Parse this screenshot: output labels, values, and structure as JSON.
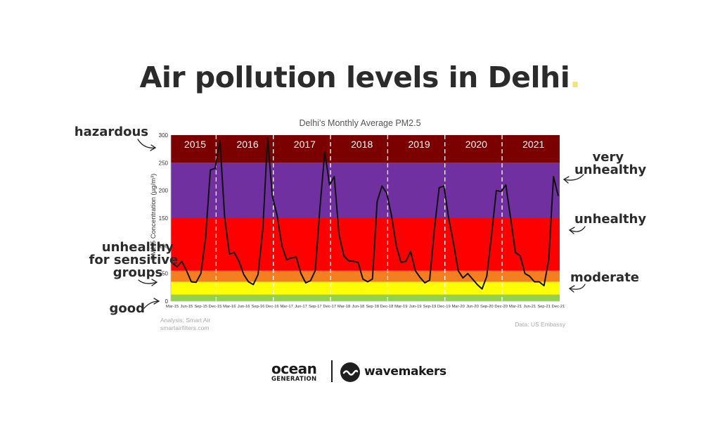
{
  "page": {
    "title": "Air pollution levels in Delhi",
    "title_dot": ".",
    "accent_dot_color": "#f2e27a"
  },
  "annotations": {
    "left": [
      "hazardous",
      "unhealthy\nfor sensitive\ngroups",
      "good"
    ],
    "right": [
      "very\nunhealthy",
      "unhealthy",
      "moderate"
    ]
  },
  "credits": {
    "analysis_line1": "Analysis: Smart Air",
    "analysis_line2": "smartairfilters.com",
    "source": "Data: US Embassy"
  },
  "footer": {
    "brand1_line1": "ocean",
    "brand1_line2": "GENERATION",
    "brand2": "wavemakers"
  },
  "chart_data": {
    "type": "line",
    "title": "Delhi's Monthly Average PM2.5",
    "ylabel": "PM2.5 Concentration (µg/m³)",
    "xlabel": "",
    "ylim": [
      0,
      300
    ],
    "yticks": [
      0,
      50,
      100,
      150,
      200,
      250,
      300
    ],
    "grid": false,
    "line_color": "#111111",
    "bands": [
      {
        "from": 0,
        "to": 12,
        "color": "#92d050",
        "label": "good"
      },
      {
        "from": 12,
        "to": 35,
        "color": "#ffff00",
        "label": "moderate"
      },
      {
        "from": 35,
        "to": 55,
        "color": "#f47f20",
        "label": "unhealthy for sensitive groups"
      },
      {
        "from": 55,
        "to": 150,
        "color": "#ff0000",
        "label": "unhealthy"
      },
      {
        "from": 150,
        "to": 250,
        "color": "#7030a0",
        "label": "very unhealthy"
      },
      {
        "from": 250,
        "to": 300,
        "color": "#7b0000",
        "label": "hazardous"
      }
    ],
    "years": [
      "2015",
      "2016",
      "2017",
      "2018",
      "2019",
      "2020",
      "2021"
    ],
    "x_tick_labels": [
      "Mar-15",
      "Jun-15",
      "Sep-15",
      "Dec-15",
      "Mar-16",
      "Jun-16",
      "Sep-16",
      "Dec-16",
      "Mar-17",
      "Jun-17",
      "Sep-17",
      "Dec-17",
      "Mar-18",
      "Jun-18",
      "Sep-18",
      "Dec-18",
      "Mar-19",
      "Jun-19",
      "Sep-19",
      "Dec-19",
      "Mar-20",
      "Jun-20",
      "Sep-20",
      "Dec-20",
      "Mar-21",
      "Jun-21",
      "Sep-21",
      "Dec-21"
    ],
    "x": [
      "Mar-15",
      "Apr-15",
      "May-15",
      "Jun-15",
      "Jul-15",
      "Aug-15",
      "Sep-15",
      "Oct-15",
      "Nov-15",
      "Dec-15",
      "Jan-16",
      "Feb-16",
      "Mar-16",
      "Apr-16",
      "May-16",
      "Jun-16",
      "Jul-16",
      "Aug-16",
      "Sep-16",
      "Oct-16",
      "Nov-16",
      "Dec-16",
      "Jan-17",
      "Feb-17",
      "Mar-17",
      "Apr-17",
      "May-17",
      "Jun-17",
      "Jul-17",
      "Aug-17",
      "Sep-17",
      "Oct-17",
      "Nov-17",
      "Dec-17",
      "Jan-18",
      "Feb-18",
      "Mar-18",
      "Apr-18",
      "May-18",
      "Jun-18",
      "Jul-18",
      "Aug-18",
      "Sep-18",
      "Oct-18",
      "Nov-18",
      "Dec-18",
      "Jan-19",
      "Feb-19",
      "Mar-19",
      "Apr-19",
      "May-19",
      "Jun-19",
      "Jul-19",
      "Aug-19",
      "Sep-19",
      "Oct-19",
      "Nov-19",
      "Dec-19",
      "Jan-20",
      "Feb-20",
      "Mar-20",
      "Apr-20",
      "May-20",
      "Jun-20",
      "Jul-20",
      "Aug-20",
      "Sep-20",
      "Oct-20",
      "Nov-20",
      "Dec-20",
      "Jan-21",
      "Feb-21",
      "Mar-21",
      "Apr-21",
      "May-21",
      "Jun-21",
      "Jul-21",
      "Aug-21",
      "Sep-21",
      "Oct-21",
      "Nov-21",
      "Dec-21"
    ],
    "values": [
      69,
      62,
      72,
      55,
      35,
      34,
      50,
      115,
      237,
      240,
      290,
      150,
      85,
      88,
      72,
      48,
      35,
      30,
      48,
      130,
      295,
      190,
      155,
      100,
      75,
      78,
      80,
      50,
      33,
      37,
      55,
      170,
      270,
      210,
      225,
      120,
      82,
      73,
      72,
      70,
      40,
      35,
      40,
      180,
      208,
      195,
      155,
      100,
      70,
      72,
      90,
      55,
      43,
      33,
      38,
      130,
      205,
      208,
      150,
      105,
      55,
      42,
      50,
      40,
      30,
      22,
      45,
      120,
      200,
      198,
      210,
      150,
      88,
      82,
      50,
      45,
      35,
      35,
      28,
      75,
      225,
      190
    ]
  }
}
